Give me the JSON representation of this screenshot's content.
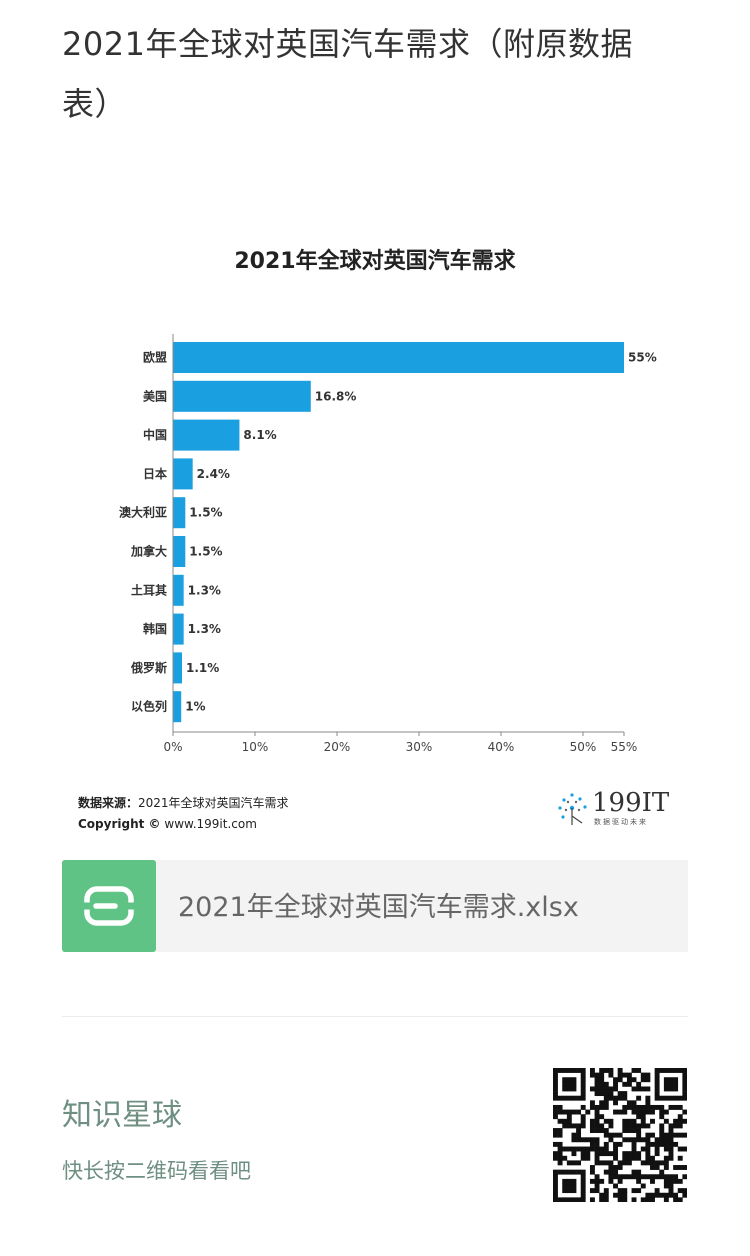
{
  "article": {
    "title": "2021年全球对英国汽车需求（附原数据表）"
  },
  "chart_data": {
    "type": "bar",
    "orientation": "horizontal",
    "title": "2021年全球对英国汽车需求",
    "categories": [
      "欧盟",
      "美国",
      "中国",
      "日本",
      "澳大利亚",
      "加拿大",
      "土耳其",
      "韩国",
      "俄罗斯",
      "以色列"
    ],
    "values": [
      55,
      16.8,
      8.1,
      2.4,
      1.5,
      1.5,
      1.3,
      1.3,
      1.1,
      1
    ],
    "value_labels": [
      "55%",
      "16.8%",
      "8.1%",
      "2.4%",
      "1.5%",
      "1.5%",
      "1.3%",
      "1.3%",
      "1.1%",
      "1%"
    ],
    "x_ticks": [
      0,
      10,
      20,
      30,
      40,
      50,
      55
    ],
    "x_tick_labels": [
      "0%",
      "10%",
      "20%",
      "30%",
      "40%",
      "50%",
      "55%"
    ],
    "xlim": [
      0,
      55
    ],
    "bar_color": "#1a9fe0",
    "grid": false,
    "source_label": "数据来源：",
    "source_text": "2021年全球对英国汽车需求",
    "copyright_label": "Copyright ©",
    "copyright_site": "www.199it.com"
  },
  "logo": {
    "text": "199IT",
    "tagline": "数据驱动未来"
  },
  "file": {
    "icon": "wps-sheet-icon",
    "name": "2021年全球对英国汽车需求.xlsx",
    "color": "#5fc385"
  },
  "knowledge": {
    "title": "知识星球",
    "subtitle": "快长按二维码看看吧",
    "color": "#6e8f82"
  }
}
